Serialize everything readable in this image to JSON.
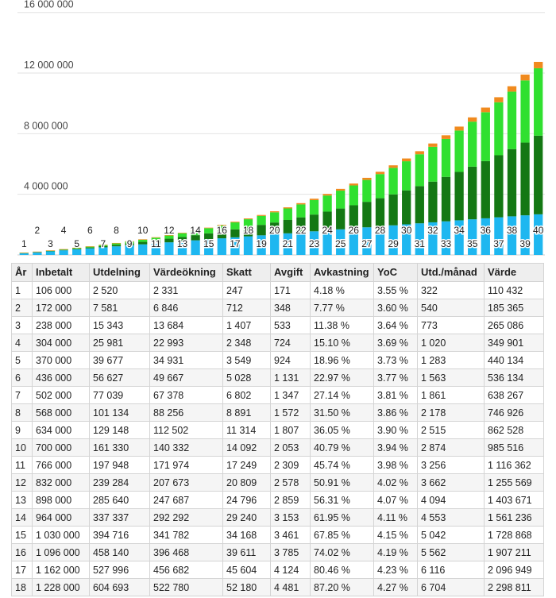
{
  "chart_data": {
    "type": "bar",
    "stacked": true,
    "categories": [
      "1",
      "2",
      "3",
      "4",
      "5",
      "6",
      "7",
      "8",
      "9",
      "10",
      "11",
      "12",
      "13",
      "14",
      "15",
      "16",
      "17",
      "18",
      "19",
      "20",
      "21",
      "22",
      "23",
      "24",
      "25",
      "26",
      "27",
      "28",
      "29",
      "30",
      "31",
      "32",
      "33",
      "34",
      "35",
      "36",
      "37",
      "38",
      "39",
      "40"
    ],
    "yticks": [
      "16 000 000",
      "12 000 000",
      "8 000 000",
      "4 000 000"
    ],
    "ytick_values": [
      16000000,
      12000000,
      8000000,
      4000000
    ],
    "ylim": [
      0,
      16300000
    ],
    "grid": true,
    "legend": "none",
    "series": [
      {
        "color": "#1eb7f0",
        "values": [
          106000,
          172000,
          238000,
          304000,
          370000,
          436000,
          502000,
          568000,
          634000,
          700000,
          766000,
          832000,
          898000,
          964000,
          1030000,
          1096000,
          1162000,
          1228000,
          1294000,
          1360000,
          1426000,
          1492000,
          1558000,
          1624000,
          1690000,
          1756000,
          1822000,
          1888000,
          1954000,
          2020000,
          2086000,
          2152000,
          2218000,
          2284000,
          2350000,
          2416000,
          2482000,
          2548000,
          2614000,
          2680000
        ]
      },
      {
        "color": "#147814",
        "values": [
          2520,
          7581,
          15343,
          25981,
          39677,
          56627,
          77039,
          101134,
          129148,
          161330,
          197948,
          239284,
          285640,
          337337,
          394716,
          458140,
          527996,
          604693,
          688600,
          780100,
          880000,
          988600,
          1106400,
          1234000,
          1372000,
          1521000,
          1682000,
          1855000,
          2041000,
          2241000,
          2456000,
          2686000,
          2932000,
          3195000,
          3476000,
          3776000,
          4096000,
          4437000,
          4800000,
          5190000
        ]
      },
      {
        "color": "#30e030",
        "values": [
          2331,
          6846,
          13684,
          22993,
          34931,
          49667,
          67378,
          88256,
          112502,
          140332,
          171974,
          207673,
          247687,
          292292,
          341782,
          396468,
          456682,
          522780,
          595000,
          674000,
          760000,
          853000,
          954000,
          1063000,
          1181000,
          1308000,
          1445000,
          1592000,
          1750000,
          1920000,
          2102000,
          2297000,
          2506000,
          2730000,
          2969000,
          3225000,
          3498000,
          3790000,
          4102000,
          4450000
        ]
      },
      {
        "color": "#f08a1e",
        "values": [
          -247,
          -712,
          -1407,
          -2348,
          -3549,
          -5028,
          -6802,
          -8891,
          -11314,
          -14092,
          -17249,
          -20809,
          -24796,
          -29240,
          -34168,
          -39611,
          -45604,
          -52180,
          -59100,
          -66600,
          -74800,
          -83700,
          -93300,
          -103600,
          -114800,
          -126800,
          -139700,
          -153600,
          -168500,
          -184500,
          -201600,
          -219900,
          -239400,
          -260300,
          -282500,
          -306300,
          -331600,
          -358600,
          -387400,
          -418000
        ]
      }
    ]
  },
  "table": {
    "headers": [
      "År",
      "Inbetalt",
      "Utdelning",
      "Värdeökning",
      "Skatt",
      "Avgift",
      "Avkastning",
      "YoC",
      "Utd./månad",
      "Värde"
    ],
    "rows": [
      [
        "1",
        "106 000",
        "2 520",
        "2 331",
        "247",
        "171",
        "4.18 %",
        "3.55 %",
        "322",
        "110 432"
      ],
      [
        "2",
        "172 000",
        "7 581",
        "6 846",
        "712",
        "348",
        "7.77 %",
        "3.60 %",
        "540",
        "185 365"
      ],
      [
        "3",
        "238 000",
        "15 343",
        "13 684",
        "1 407",
        "533",
        "11.38 %",
        "3.64 %",
        "773",
        "265 086"
      ],
      [
        "4",
        "304 000",
        "25 981",
        "22 993",
        "2 348",
        "724",
        "15.10 %",
        "3.69 %",
        "1 020",
        "349 901"
      ],
      [
        "5",
        "370 000",
        "39 677",
        "34 931",
        "3 549",
        "924",
        "18.96 %",
        "3.73 %",
        "1 283",
        "440 134"
      ],
      [
        "6",
        "436 000",
        "56 627",
        "49 667",
        "5 028",
        "1 131",
        "22.97 %",
        "3.77 %",
        "1 563",
        "536 134"
      ],
      [
        "7",
        "502 000",
        "77 039",
        "67 378",
        "6 802",
        "1 347",
        "27.14 %",
        "3.81 %",
        "1 861",
        "638 267"
      ],
      [
        "8",
        "568 000",
        "101 134",
        "88 256",
        "8 891",
        "1 572",
        "31.50 %",
        "3.86 %",
        "2 178",
        "746 926"
      ],
      [
        "9",
        "634 000",
        "129 148",
        "112 502",
        "11 314",
        "1 807",
        "36.05 %",
        "3.90 %",
        "2 515",
        "862 528"
      ],
      [
        "10",
        "700 000",
        "161 330",
        "140 332",
        "14 092",
        "2 053",
        "40.79 %",
        "3.94 %",
        "2 874",
        "985 516"
      ],
      [
        "11",
        "766 000",
        "197 948",
        "171 974",
        "17 249",
        "2 309",
        "45.74 %",
        "3.98 %",
        "3 256",
        "1 116 362"
      ],
      [
        "12",
        "832 000",
        "239 284",
        "207 673",
        "20 809",
        "2 578",
        "50.91 %",
        "4.02 %",
        "3 662",
        "1 255 569"
      ],
      [
        "13",
        "898 000",
        "285 640",
        "247 687",
        "24 796",
        "2 859",
        "56.31 %",
        "4.07 %",
        "4 094",
        "1 403 671"
      ],
      [
        "14",
        "964 000",
        "337 337",
        "292 292",
        "29 240",
        "3 153",
        "61.95 %",
        "4.11 %",
        "4 553",
        "1 561 236"
      ],
      [
        "15",
        "1 030 000",
        "394 716",
        "341 782",
        "34 168",
        "3 461",
        "67.85 %",
        "4.15 %",
        "5 042",
        "1 728 868"
      ],
      [
        "16",
        "1 096 000",
        "458 140",
        "396 468",
        "39 611",
        "3 785",
        "74.02 %",
        "4.19 %",
        "5 562",
        "1 907 211"
      ],
      [
        "17",
        "1 162 000",
        "527 996",
        "456 682",
        "45 604",
        "4 124",
        "80.46 %",
        "4.23 %",
        "6 116",
        "2 096 949"
      ],
      [
        "18",
        "1 228 000",
        "604 693",
        "522 780",
        "52 180",
        "4 481",
        "87.20 %",
        "4.27 %",
        "6 704",
        "2 298 811"
      ]
    ]
  }
}
